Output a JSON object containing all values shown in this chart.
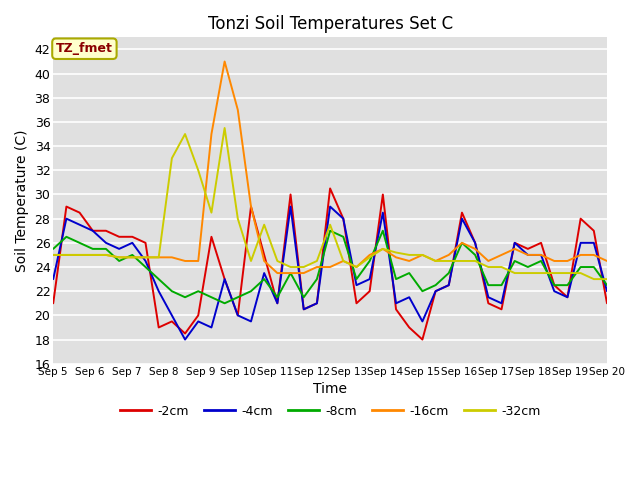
{
  "title": "Tonzi Soil Temperatures Set C",
  "xlabel": "Time",
  "ylabel": "Soil Temperature (C)",
  "ylim": [
    16,
    43
  ],
  "yticks": [
    16,
    18,
    20,
    22,
    24,
    26,
    28,
    30,
    32,
    34,
    36,
    38,
    40,
    42
  ],
  "annotation_text": "TZ_fmet",
  "annotation_color": "#8B0000",
  "annotation_bg": "#FFFFCC",
  "annotation_edge": "#AAAA00",
  "bg_color": "#E0E0E0",
  "grid_color": "#FFFFFF",
  "series_order": [
    "-2cm",
    "-4cm",
    "-8cm",
    "-16cm",
    "-32cm"
  ],
  "series": {
    "-2cm": {
      "color": "#DD0000",
      "lw": 1.4
    },
    "-4cm": {
      "color": "#0000CC",
      "lw": 1.4
    },
    "-8cm": {
      "color": "#00AA00",
      "lw": 1.4
    },
    "-16cm": {
      "color": "#FF8800",
      "lw": 1.4
    },
    "-32cm": {
      "color": "#CCCC00",
      "lw": 1.4
    }
  },
  "x_labels": [
    "Sep 5",
    "Sep 6",
    "Sep 7",
    "Sep 8",
    "Sep 9",
    "Sep 10",
    "Sep 11",
    "Sep 12",
    "Sep 13",
    "Sep 14",
    "Sep 15",
    "Sep 16",
    "Sep 17",
    "Sep 18",
    "Sep 19",
    "Sep 20"
  ],
  "data_2cm": [
    21.0,
    29.0,
    28.5,
    27.0,
    27.0,
    26.5,
    26.5,
    26.0,
    19.0,
    19.5,
    18.5,
    20.0,
    26.5,
    23.0,
    20.0,
    29.0,
    25.0,
    21.0,
    30.0,
    20.5,
    21.0,
    30.5,
    28.0,
    21.0,
    22.0,
    30.0,
    20.5,
    19.0,
    18.0,
    22.0,
    22.5,
    28.5,
    26.0,
    21.0,
    20.5,
    26.0,
    25.5,
    26.0,
    22.5,
    21.5,
    28.0,
    27.0,
    21.0
  ],
  "data_4cm": [
    23.0,
    28.0,
    27.5,
    27.0,
    26.0,
    25.5,
    26.0,
    24.5,
    22.0,
    20.0,
    18.0,
    19.5,
    19.0,
    23.0,
    20.0,
    19.5,
    23.5,
    21.0,
    29.0,
    20.5,
    21.0,
    29.0,
    28.0,
    22.5,
    23.0,
    28.5,
    21.0,
    21.5,
    19.5,
    22.0,
    22.5,
    28.0,
    26.0,
    21.5,
    21.0,
    26.0,
    25.0,
    25.0,
    22.0,
    21.5,
    26.0,
    26.0,
    22.0
  ],
  "data_8cm": [
    25.5,
    26.5,
    26.0,
    25.5,
    25.5,
    24.5,
    25.0,
    24.0,
    23.0,
    22.0,
    21.5,
    22.0,
    21.5,
    21.0,
    21.5,
    22.0,
    23.0,
    21.5,
    23.5,
    21.5,
    23.0,
    27.0,
    26.5,
    23.0,
    24.5,
    27.0,
    23.0,
    23.5,
    22.0,
    22.5,
    23.5,
    26.0,
    25.0,
    22.5,
    22.5,
    24.5,
    24.0,
    24.5,
    22.5,
    22.5,
    24.0,
    24.0,
    22.5
  ],
  "data_16cm": [
    25.0,
    25.0,
    25.0,
    25.0,
    25.0,
    24.8,
    24.8,
    24.8,
    24.8,
    24.8,
    24.5,
    24.5,
    35.0,
    41.0,
    37.0,
    29.0,
    24.5,
    23.5,
    23.5,
    23.5,
    24.0,
    24.0,
    24.5,
    24.0,
    25.0,
    25.5,
    24.8,
    24.5,
    25.0,
    24.5,
    25.0,
    26.0,
    25.5,
    24.5,
    25.0,
    25.5,
    25.0,
    25.0,
    24.5,
    24.5,
    25.0,
    25.0,
    24.5
  ],
  "data_32cm": [
    25.0,
    25.0,
    25.0,
    25.0,
    25.0,
    24.8,
    24.8,
    24.8,
    24.8,
    33.0,
    35.0,
    32.0,
    28.5,
    35.5,
    28.0,
    24.5,
    27.5,
    24.5,
    24.0,
    24.0,
    24.5,
    27.5,
    24.5,
    24.0,
    24.8,
    25.5,
    25.2,
    25.0,
    25.0,
    24.5,
    24.5,
    24.5,
    24.5,
    24.0,
    24.0,
    23.5,
    23.5,
    23.5,
    23.5,
    23.5,
    23.5,
    23.0,
    23.0
  ],
  "n_points": 43,
  "figsize": [
    6.4,
    4.8
  ],
  "dpi": 100
}
